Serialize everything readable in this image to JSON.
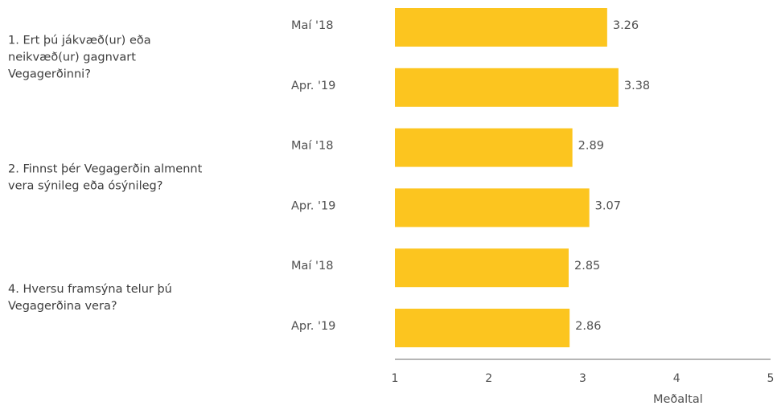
{
  "chart_data": {
    "type": "bar",
    "orientation": "horizontal",
    "xlabel": "Meðaltal",
    "xlim": [
      1,
      5
    ],
    "xticks": [
      "1",
      "2",
      "3",
      "4",
      "5"
    ],
    "legend": "none",
    "grid": false,
    "bar_color": "#fcc51f",
    "groups": [
      {
        "question": [
          "1. Ert þú jákvæð(ur) eða",
          "neikvæð(ur) gagnvart",
          "Vegagerðinni?"
        ],
        "bars": [
          {
            "period": "Maí '18",
            "value": 3.26,
            "label": "3.26"
          },
          {
            "period": "Apr. '19",
            "value": 3.38,
            "label": "3.38"
          }
        ]
      },
      {
        "question": [
          "2. Finnst þér Vegagerðin almennt",
          "vera sýnileg eða ósýnileg?"
        ],
        "bars": [
          {
            "period": "Maí '18",
            "value": 2.89,
            "label": "2.89"
          },
          {
            "period": "Apr. '19",
            "value": 3.07,
            "label": "3.07"
          }
        ]
      },
      {
        "question": [
          "4. Hversu framsýna telur þú",
          "Vegagerðina vera?"
        ],
        "bars": [
          {
            "period": "Maí '18",
            "value": 2.85,
            "label": "2.85"
          },
          {
            "period": "Apr. '19",
            "value": 2.86,
            "label": "2.86"
          }
        ]
      }
    ]
  }
}
